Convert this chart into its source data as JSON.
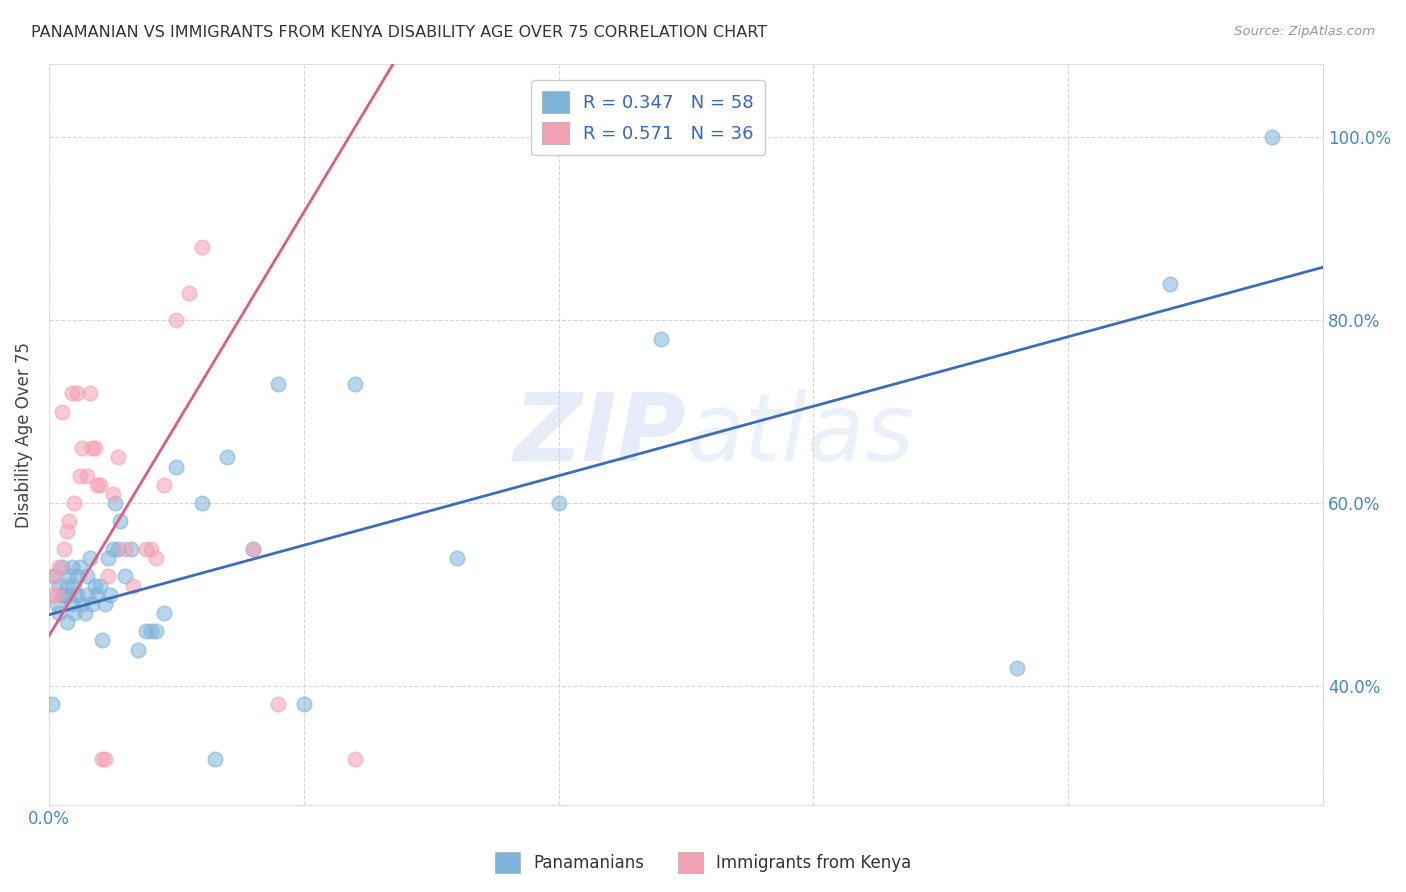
{
  "title": "PANAMANIAN VS IMMIGRANTS FROM KENYA DISABILITY AGE OVER 75 CORRELATION CHART",
  "source": "Source: ZipAtlas.com",
  "ylabel": "Disability Age Over 75",
  "xlim": [
    0.0,
    0.5
  ],
  "ylim": [
    0.27,
    1.08
  ],
  "xtick_vals": [
    0.0,
    0.05,
    0.1,
    0.15,
    0.2,
    0.25,
    0.3,
    0.35,
    0.4,
    0.45,
    0.5
  ],
  "xtick_labels_shown": {
    "0.0": "0.0%"
  },
  "xtick_major_vals": [
    0.0,
    0.1,
    0.2,
    0.3,
    0.4,
    0.5
  ],
  "ytick_vals": [
    0.4,
    0.6,
    0.8,
    1.0
  ],
  "ytick_labels": [
    "40.0%",
    "60.0%",
    "80.0%",
    "100.0%"
  ],
  "legend_entries": [
    {
      "label": "R = 0.347   N = 58",
      "color": "#a8c4e0"
    },
    {
      "label": "R = 0.571   N = 36",
      "color": "#f4a7b9"
    }
  ],
  "blue_scatter_x": [
    0.001,
    0.002,
    0.003,
    0.004,
    0.004,
    0.005,
    0.005,
    0.006,
    0.007,
    0.007,
    0.008,
    0.008,
    0.009,
    0.009,
    0.01,
    0.01,
    0.011,
    0.011,
    0.012,
    0.013,
    0.014,
    0.015,
    0.015,
    0.016,
    0.017,
    0.018,
    0.019,
    0.02,
    0.021,
    0.022,
    0.023,
    0.024,
    0.025,
    0.026,
    0.027,
    0.028,
    0.03,
    0.032,
    0.035,
    0.038,
    0.04,
    0.042,
    0.045,
    0.05,
    0.06,
    0.065,
    0.07,
    0.08,
    0.09,
    0.1,
    0.12,
    0.16,
    0.2,
    0.24,
    0.27,
    0.38,
    0.44,
    0.48
  ],
  "blue_scatter_y": [
    0.38,
    0.52,
    0.49,
    0.51,
    0.48,
    0.5,
    0.53,
    0.5,
    0.51,
    0.47,
    0.5,
    0.52,
    0.49,
    0.53,
    0.51,
    0.48,
    0.52,
    0.5,
    0.53,
    0.49,
    0.48,
    0.5,
    0.52,
    0.54,
    0.49,
    0.51,
    0.5,
    0.51,
    0.45,
    0.49,
    0.54,
    0.5,
    0.55,
    0.6,
    0.55,
    0.58,
    0.52,
    0.55,
    0.44,
    0.46,
    0.46,
    0.46,
    0.48,
    0.64,
    0.6,
    0.32,
    0.65,
    0.55,
    0.73,
    0.38,
    0.73,
    0.54,
    0.6,
    0.78,
    0.99,
    0.42,
    0.84,
    1.0
  ],
  "pink_scatter_x": [
    0.001,
    0.002,
    0.003,
    0.004,
    0.005,
    0.006,
    0.007,
    0.008,
    0.009,
    0.01,
    0.011,
    0.012,
    0.013,
    0.015,
    0.016,
    0.017,
    0.018,
    0.019,
    0.02,
    0.021,
    0.022,
    0.023,
    0.025,
    0.027,
    0.03,
    0.033,
    0.038,
    0.04,
    0.042,
    0.045,
    0.05,
    0.055,
    0.06,
    0.08,
    0.09,
    0.12
  ],
  "pink_scatter_y": [
    0.5,
    0.52,
    0.5,
    0.53,
    0.7,
    0.55,
    0.57,
    0.58,
    0.72,
    0.6,
    0.72,
    0.63,
    0.66,
    0.63,
    0.72,
    0.66,
    0.66,
    0.62,
    0.62,
    0.32,
    0.32,
    0.52,
    0.61,
    0.65,
    0.55,
    0.51,
    0.55,
    0.55,
    0.54,
    0.62,
    0.8,
    0.83,
    0.88,
    0.55,
    0.38,
    0.32
  ],
  "blue_line_x": [
    0.0,
    0.5
  ],
  "blue_line_y": [
    0.478,
    0.858
  ],
  "pink_line_x": [
    0.0,
    0.135
  ],
  "pink_line_y": [
    0.455,
    1.08
  ],
  "scatter_color_blue": "#7EB3D8",
  "scatter_color_pink": "#F4A0B4",
  "line_color_blue": "#3C6EBA",
  "line_color_pink": "#E05A82",
  "watermark_zip": "ZIP",
  "watermark_atlas": "atlas",
  "background_color": "#ffffff",
  "grid_color": "#cccccc"
}
